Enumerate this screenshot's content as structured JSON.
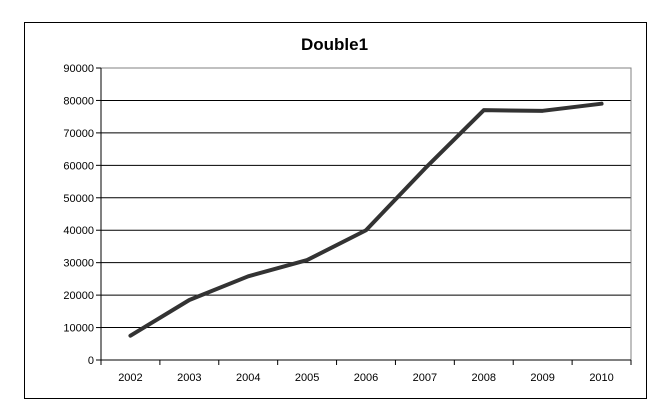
{
  "chart_data": {
    "type": "line",
    "title": "Double1",
    "xlabel": "",
    "ylabel": "",
    "categories": [
      "2002",
      "2003",
      "2004",
      "2005",
      "2006",
      "2007",
      "2008",
      "2009",
      "2010"
    ],
    "series": [
      {
        "values": [
          7500,
          18500,
          25800,
          30800,
          40000,
          59000,
          77000,
          76800,
          79000
        ]
      }
    ],
    "ylim": [
      0,
      90000
    ],
    "yticks": [
      0,
      10000,
      20000,
      30000,
      40000,
      50000,
      60000,
      70000,
      80000,
      90000
    ],
    "grid": true,
    "legend": "none",
    "colors": {
      "line": "#333333",
      "grid": "#000000",
      "plot_border": "#808080"
    }
  }
}
